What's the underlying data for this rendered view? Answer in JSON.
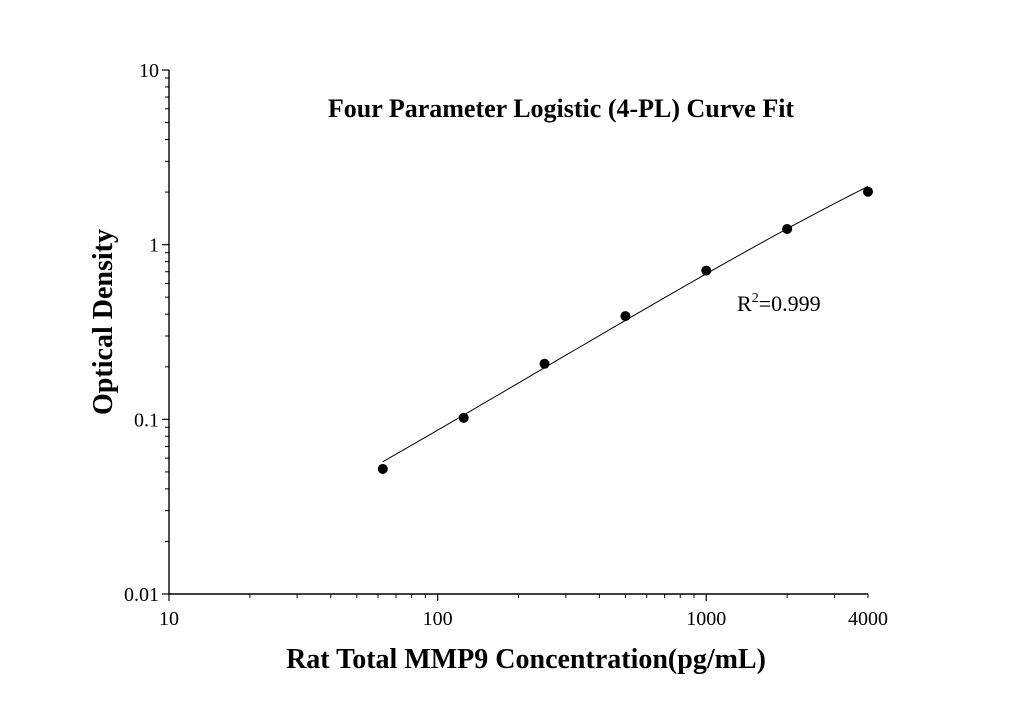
{
  "chart_data": {
    "type": "scatter",
    "title": "Four Parameter Logistic (4-PL) Curve Fit",
    "xlabel": "Rat Total MMP9 Concentration(pg/mL)",
    "ylabel": "Optical Density",
    "xscale": "log",
    "yscale": "log",
    "xlim": [
      10,
      4000
    ],
    "ylim": [
      0.01,
      10
    ],
    "xticks": [
      "10",
      "100",
      "1000",
      "4000"
    ],
    "yticks": [
      "10",
      "1",
      "0.1",
      "0.01"
    ],
    "grid": false,
    "legend": "none",
    "annotation": {
      "base": "R",
      "sup": "2",
      "rest": "=0.999"
    },
    "series": [
      {
        "points": [
          {
            "x": 62.5,
            "y": 0.052
          },
          {
            "x": 125,
            "y": 0.102
          },
          {
            "x": 250,
            "y": 0.208
          },
          {
            "x": 500,
            "y": 0.39
          },
          {
            "x": 1000,
            "y": 0.71
          },
          {
            "x": 2000,
            "y": 1.23
          },
          {
            "x": 4000,
            "y": 2.01
          }
        ]
      }
    ],
    "fit_curve": {
      "model": "4PL",
      "A": 0.003,
      "B": 0.93,
      "C": 21340,
      "D": 12.36,
      "x_range": [
        62.5,
        4000
      ]
    }
  }
}
